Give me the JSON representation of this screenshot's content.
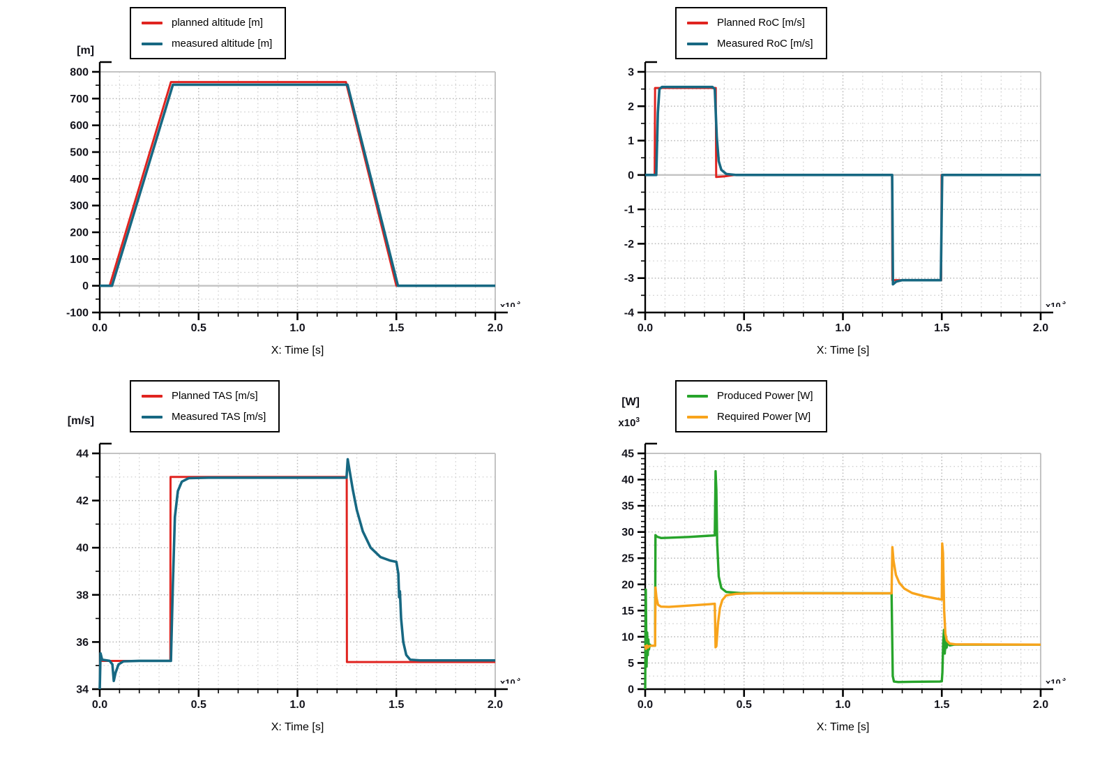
{
  "x_axis_title": "X: Time [s]",
  "axis_end_note": {
    "text": "x10",
    "exp": "3"
  },
  "colors": {
    "planned": "#e02420",
    "measured": "#176882",
    "produced": "#27a42b",
    "required": "#f8a41c",
    "grid_minor": "#cccccc",
    "grid_major": "#b9b9b9",
    "frame_gray": "#c3c3c3",
    "axis_black": "#000000",
    "tick_label": "#14141c"
  },
  "chart_data": [
    {
      "type": "line",
      "name": "altitude",
      "y_unit": "[m]",
      "x_title": "X: Time [s]",
      "xlim": [
        0,
        2
      ],
      "ylim": [
        -100,
        800
      ],
      "x_ticks": [
        "0.0",
        "0.5",
        "1.0",
        "1.5",
        "2.0"
      ],
      "y_ticks": [
        "800",
        "700",
        "600",
        "500",
        "400",
        "300",
        "200",
        "100",
        "0",
        "-100"
      ],
      "grid": {
        "x_step": 0.1,
        "x_major": 0.5,
        "y_step": 50,
        "y_major": 100,
        "y_minor": 50,
        "zero_line": true
      },
      "legend_position": "top",
      "legend": [
        {
          "label": "planned altitude [m]",
          "color": "#e02420"
        },
        {
          "label": "measured altitude [m]",
          "color": "#176882"
        }
      ],
      "series": [
        {
          "name": "planned altitude [m]",
          "color": "#e02420",
          "width": 3,
          "points": [
            [
              0,
              0
            ],
            [
              0.05,
              0
            ],
            [
              0.36,
              762
            ],
            [
              1.245,
              762
            ],
            [
              1.5,
              0
            ],
            [
              2,
              0
            ]
          ]
        },
        {
          "name": "measured altitude [m]",
          "color": "#176882",
          "width": 3.6,
          "points": [
            [
              0,
              0
            ],
            [
              0.062,
              0
            ],
            [
              0.37,
              752
            ],
            [
              1.253,
              752
            ],
            [
              1.508,
              0
            ],
            [
              2,
              0
            ]
          ]
        }
      ]
    },
    {
      "type": "line",
      "name": "rate-of-climb",
      "y_unit": "",
      "x_title": "X: Time [s]",
      "xlim": [
        0,
        2
      ],
      "ylim": [
        -4,
        3
      ],
      "x_ticks": [
        "0.0",
        "0.5",
        "1.0",
        "1.5",
        "2.0"
      ],
      "y_ticks": [
        "3",
        "2",
        "1",
        "0",
        "-1",
        "-2",
        "-3",
        "-4"
      ],
      "grid": {
        "x_step": 0.1,
        "x_major": 0.5,
        "y_step": 0.5,
        "y_major": 1,
        "y_minor": 0.5,
        "zero_line": true
      },
      "legend_position": "top",
      "legend": [
        {
          "label": "Planned RoC [m/s]",
          "color": "#e02420"
        },
        {
          "label": "Measured RoC [m/s]",
          "color": "#176882"
        }
      ],
      "series": [
        {
          "name": "Planned RoC [m/s]",
          "color": "#e02420",
          "width": 3,
          "points": [
            [
              0,
              0
            ],
            [
              0.048,
              0
            ],
            [
              0.05,
              2.53
            ],
            [
              0.357,
              2.53
            ],
            [
              0.359,
              -0.06
            ],
            [
              0.4,
              -0.04
            ],
            [
              0.45,
              0
            ],
            [
              1.248,
              0
            ],
            [
              1.25,
              -3.06
            ],
            [
              1.497,
              -3.06
            ],
            [
              1.499,
              0
            ],
            [
              2,
              0
            ]
          ]
        },
        {
          "name": "Measured RoC [m/s]",
          "color": "#176882",
          "width": 3.6,
          "points": [
            [
              0,
              0
            ],
            [
              0.056,
              0
            ],
            [
              0.064,
              1.8
            ],
            [
              0.072,
              2.5
            ],
            [
              0.085,
              2.56
            ],
            [
              0.34,
              2.56
            ],
            [
              0.352,
              2.5
            ],
            [
              0.362,
              1.1
            ],
            [
              0.372,
              0.4
            ],
            [
              0.385,
              0.15
            ],
            [
              0.41,
              0.03
            ],
            [
              0.46,
              0
            ],
            [
              1.249,
              0
            ],
            [
              1.253,
              -3.18
            ],
            [
              1.27,
              -3.1
            ],
            [
              1.3,
              -3.06
            ],
            [
              1.495,
              -3.06
            ],
            [
              1.502,
              0
            ],
            [
              2,
              0
            ]
          ]
        }
      ]
    },
    {
      "type": "line",
      "name": "true-airspeed",
      "y_unit": "[m/s]",
      "x_title": "X: Time [s]",
      "xlim": [
        0,
        2
      ],
      "ylim": [
        34,
        44
      ],
      "x_ticks": [
        "0.0",
        "0.5",
        "1.0",
        "1.5",
        "2.0"
      ],
      "y_ticks": [
        "44",
        "42",
        "40",
        "38",
        "36",
        "34"
      ],
      "grid": {
        "x_step": 0.1,
        "x_major": 0.5,
        "y_step": 1,
        "y_major": 2,
        "y_minor": 1,
        "zero_line": false
      },
      "legend_position": "top",
      "legend": [
        {
          "label": "Planned TAS [m/s]",
          "color": "#e02420"
        },
        {
          "label": "Measured TAS [m/s]",
          "color": "#176882"
        }
      ],
      "series": [
        {
          "name": "Planned TAS [m/s]",
          "color": "#e02420",
          "width": 3,
          "points": [
            [
              0,
              35.2
            ],
            [
              0.357,
              35.2
            ],
            [
              0.358,
              43
            ],
            [
              1.249,
              43
            ],
            [
              1.25,
              35.15
            ],
            [
              2,
              35.15
            ]
          ]
        },
        {
          "name": "Measured TAS [m/s]",
          "color": "#176882",
          "width": 3.6,
          "points": [
            [
              0,
              34
            ],
            [
              0.004,
              35.52
            ],
            [
              0.012,
              35.25
            ],
            [
              0.05,
              35.2
            ],
            [
              0.064,
              35.05
            ],
            [
              0.071,
              34.35
            ],
            [
              0.08,
              34.7
            ],
            [
              0.095,
              35.05
            ],
            [
              0.12,
              35.18
            ],
            [
              0.2,
              35.2
            ],
            [
              0.36,
              35.2
            ],
            [
              0.37,
              38.5
            ],
            [
              0.38,
              41.3
            ],
            [
              0.395,
              42.4
            ],
            [
              0.415,
              42.8
            ],
            [
              0.45,
              42.95
            ],
            [
              0.55,
              42.97
            ],
            [
              1.248,
              42.97
            ],
            [
              1.254,
              43.75
            ],
            [
              1.263,
              43.3
            ],
            [
              1.28,
              42.45
            ],
            [
              1.3,
              41.6
            ],
            [
              1.33,
              40.7
            ],
            [
              1.37,
              40.0
            ],
            [
              1.42,
              39.6
            ],
            [
              1.47,
              39.45
            ],
            [
              1.5,
              39.4
            ],
            [
              1.51,
              38.9
            ],
            [
              1.514,
              37.9
            ],
            [
              1.518,
              38.15
            ],
            [
              1.524,
              37.0
            ],
            [
              1.535,
              36.0
            ],
            [
              1.55,
              35.45
            ],
            [
              1.57,
              35.25
            ],
            [
              1.62,
              35.22
            ],
            [
              2,
              35.22
            ]
          ]
        }
      ]
    },
    {
      "type": "line",
      "name": "power",
      "y_unit": "[W]",
      "y_scale": "x10",
      "y_scale_exp": "3",
      "x_title": "X: Time [s]",
      "xlim": [
        0,
        2
      ],
      "ylim": [
        0,
        45
      ],
      "x_ticks": [
        "0.0",
        "0.5",
        "1.0",
        "1.5",
        "2.0"
      ],
      "y_ticks": [
        "45",
        "40",
        "35",
        "30",
        "25",
        "20",
        "15",
        "10",
        "5",
        "0"
      ],
      "grid": {
        "x_step": 0.1,
        "x_major": 0.5,
        "y_step": 2.5,
        "y_major": 5,
        "y_minor": 1,
        "zero_line": false
      },
      "legend_position": "top",
      "legend": [
        {
          "label": "Produced Power [W]",
          "color": "#27a42b"
        },
        {
          "label": "Required Power [W]",
          "color": "#f8a41c"
        }
      ],
      "series": [
        {
          "name": "Produced Power [W]",
          "color": "#27a42b",
          "width": 3.4,
          "points": [
            [
              0,
              0
            ],
            [
              0.003,
              19
            ],
            [
              0.005,
              12
            ],
            [
              0.007,
              4.3
            ],
            [
              0.01,
              10.8
            ],
            [
              0.013,
              6.5
            ],
            [
              0.016,
              9.5
            ],
            [
              0.019,
              7.6
            ],
            [
              0.023,
              8.5
            ],
            [
              0.03,
              8.3
            ],
            [
              0.05,
              8.3
            ],
            [
              0.052,
              29.4
            ],
            [
              0.06,
              29.1
            ],
            [
              0.08,
              28.85
            ],
            [
              0.12,
              28.9
            ],
            [
              0.22,
              29.05
            ],
            [
              0.33,
              29.3
            ],
            [
              0.352,
              29.35
            ],
            [
              0.356,
              41.6
            ],
            [
              0.36,
              38
            ],
            [
              0.364,
              28
            ],
            [
              0.372,
              21.5
            ],
            [
              0.385,
              19.3
            ],
            [
              0.41,
              18.55
            ],
            [
              0.48,
              18.35
            ],
            [
              1.246,
              18.3
            ],
            [
              1.252,
              2.5
            ],
            [
              1.258,
              1.45
            ],
            [
              1.28,
              1.35
            ],
            [
              1.35,
              1.4
            ],
            [
              1.49,
              1.45
            ],
            [
              1.5,
              1.5
            ],
            [
              1.503,
              3.2
            ],
            [
              1.507,
              8.8
            ],
            [
              1.511,
              11.3
            ],
            [
              1.515,
              6.8
            ],
            [
              1.519,
              9.8
            ],
            [
              1.524,
              7.9
            ],
            [
              1.53,
              8.9
            ],
            [
              1.54,
              8.35
            ],
            [
              1.56,
              8.5
            ],
            [
              2,
              8.5
            ]
          ]
        },
        {
          "name": "Required Power [W]",
          "color": "#f8a41c",
          "width": 3.4,
          "points": [
            [
              0,
              8.4
            ],
            [
              0.004,
              7.7
            ],
            [
              0.009,
              8.35
            ],
            [
              0.014,
              7.95
            ],
            [
              0.02,
              8.2
            ],
            [
              0.03,
              8.3
            ],
            [
              0.05,
              8.3
            ],
            [
              0.052,
              19.4
            ],
            [
              0.057,
              17.5
            ],
            [
              0.065,
              16.1
            ],
            [
              0.08,
              15.75
            ],
            [
              0.12,
              15.7
            ],
            [
              0.22,
              15.95
            ],
            [
              0.32,
              16.2
            ],
            [
              0.352,
              16.3
            ],
            [
              0.356,
              8.0
            ],
            [
              0.36,
              8.2
            ],
            [
              0.368,
              12.5
            ],
            [
              0.378,
              15.5
            ],
            [
              0.39,
              17.0
            ],
            [
              0.41,
              17.9
            ],
            [
              0.46,
              18.2
            ],
            [
              0.55,
              18.3
            ],
            [
              1.246,
              18.3
            ],
            [
              1.25,
              27.1
            ],
            [
              1.256,
              24.5
            ],
            [
              1.268,
              21.8
            ],
            [
              1.285,
              20.3
            ],
            [
              1.31,
              19.2
            ],
            [
              1.35,
              18.35
            ],
            [
              1.41,
              17.75
            ],
            [
              1.47,
              17.3
            ],
            [
              1.5,
              17.1
            ],
            [
              1.502,
              27.8
            ],
            [
              1.506,
              26
            ],
            [
              1.512,
              15
            ],
            [
              1.518,
              10.6
            ],
            [
              1.525,
              9.3
            ],
            [
              1.54,
              8.7
            ],
            [
              1.57,
              8.55
            ],
            [
              2,
              8.5
            ]
          ]
        }
      ]
    }
  ]
}
